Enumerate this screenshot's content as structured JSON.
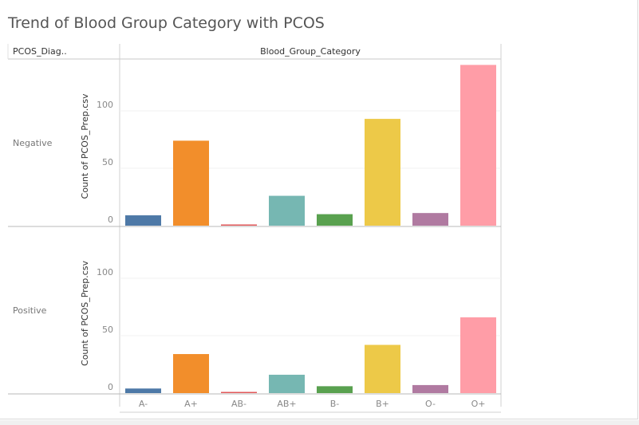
{
  "title": "Trend of Blood Group Category with PCOS",
  "row_header": "PCOS_Diag..",
  "column_header": "Blood_Group_Category",
  "chart_data": {
    "type": "bar",
    "title": "Trend of Blood Group Category with PCOS",
    "xlabel": "",
    "ylabel": "Count of PCOS_Prep.csv",
    "categories": [
      "A-",
      "A+",
      "AB-",
      "AB+",
      "B-",
      "B+",
      "O-",
      "O+"
    ],
    "colors": [
      "#4e79a7",
      "#f28e2b",
      "#e15759",
      "#76b7b2",
      "#59a14f",
      "#edc948",
      "#b07aa1",
      "#ff9da7"
    ],
    "y_ticks": [
      0,
      50,
      100
    ],
    "ylim": [
      0,
      140
    ],
    "grid": true,
    "panels": [
      {
        "name": "Negative",
        "values": [
          9,
          74,
          1,
          26,
          10,
          93,
          11,
          140
        ]
      },
      {
        "name": "Positive",
        "values": [
          4,
          34,
          1,
          16,
          6,
          42,
          7,
          66
        ]
      }
    ]
  }
}
